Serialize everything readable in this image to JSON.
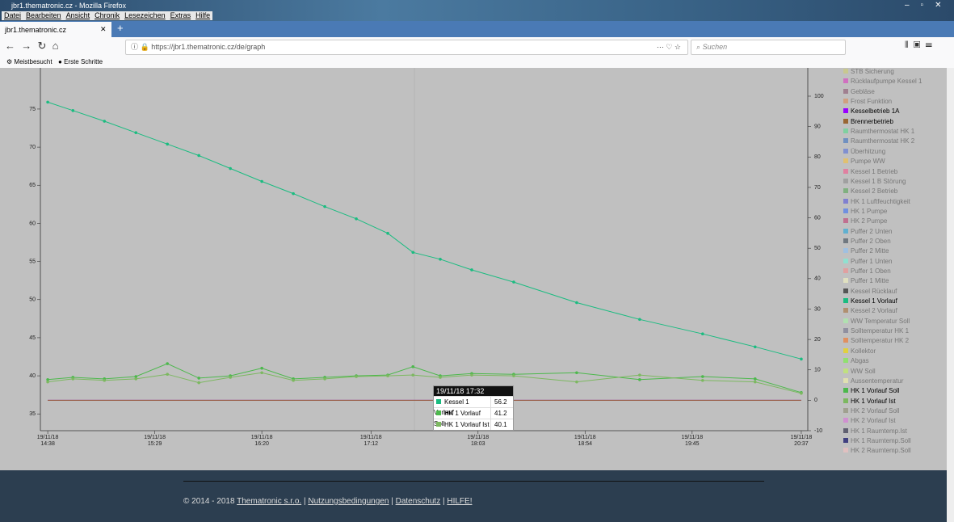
{
  "browser": {
    "window_title": "jbr1.thematronic.cz - Mozilla Firefox",
    "menu": [
      "Datei",
      "Bearbeiten",
      "Ansicht",
      "Chronik",
      "Lesezeichen",
      "Extras",
      "Hilfe"
    ],
    "tab_title": "jbr1.thematronic.cz",
    "url": "https://jbr1.thematronic.cz/de/graph",
    "search_placeholder": "Suchen",
    "bookmarks": [
      "Meistbesucht",
      "Erste Schritte"
    ]
  },
  "chart_data": {
    "type": "line",
    "x": [
      878,
      890,
      905,
      920,
      935,
      950,
      965,
      980,
      995,
      1010,
      1025,
      1040,
      1052,
      1065,
      1080,
      1100,
      1130,
      1160,
      1190,
      1215,
      1237
    ],
    "xlim": [
      874.5,
      1240.1
    ],
    "xticks": [
      {
        "value": 878,
        "label": "19/11/18 14:38"
      },
      {
        "value": 929,
        "label": "19/11/18 15:29"
      },
      {
        "value": 980,
        "label": "19/11/18 16:20"
      },
      {
        "value": 1032,
        "label": "19/11/18 17:12"
      },
      {
        "value": 1083,
        "label": "19/11/18 18:03"
      },
      {
        "value": 1134,
        "label": "19/11/18 18:54"
      },
      {
        "value": 1185,
        "label": "19/11/18 19:45"
      },
      {
        "value": 1237,
        "label": "19/11/18 20:37"
      }
    ],
    "ylim": [
      32.8,
      80.4
    ],
    "yticks": [
      35,
      40,
      45,
      50,
      55,
      60,
      65,
      70,
      75
    ],
    "y2lim": [
      -10,
      109.3
    ],
    "y2ticks": [
      -10,
      0,
      10,
      20,
      30,
      40,
      50,
      60,
      70,
      80,
      90,
      100
    ],
    "series": [
      {
        "name": "STB Sicherung",
        "color": "#c8c890"
      },
      {
        "name": "Rücklaufpumpe Kessel 1",
        "color": "#d070c0"
      },
      {
        "name": "Gebläse",
        "color": "#a08090"
      },
      {
        "name": "Frost Funktion",
        "color": "#d0a080"
      },
      {
        "name": "Kesselbetrieb 1A",
        "color": "#9900ff",
        "axis": "y2",
        "values": [
          0,
          0,
          0,
          0,
          0,
          0,
          0,
          0,
          0,
          0,
          0,
          0,
          0,
          0,
          0,
          0,
          0,
          0,
          0,
          0,
          0
        ]
      },
      {
        "name": "Brennerbetrieb",
        "color": "#996633",
        "axis": "y2",
        "values": [
          0,
          0,
          0,
          0,
          0,
          0,
          0,
          0,
          0,
          0,
          0,
          0,
          0,
          0,
          0,
          0,
          0,
          0,
          0,
          0,
          0
        ]
      },
      {
        "name": "Raumthermostat HK 1",
        "color": "#80d0a0"
      },
      {
        "name": "Raumthermostat HK 2",
        "color": "#7090c0"
      },
      {
        "name": "Überhitzung",
        "color": "#8090d0"
      },
      {
        "name": "Pumpe WW",
        "color": "#e0c070"
      },
      {
        "name": "Kessel 1 Betrieb",
        "color": "#e080a0"
      },
      {
        "name": "Kessel 1 B Störung",
        "color": "#a0a0a0"
      },
      {
        "name": "Kessel 2 Betrieb",
        "color": "#80b080"
      },
      {
        "name": "HK 1 Luftfeuchtigkeit",
        "color": "#8080d0"
      },
      {
        "name": "HK 1 Pumpe",
        "color": "#7090e0"
      },
      {
        "name": "HK 2 Pumpe",
        "color": "#c07090"
      },
      {
        "name": "Puffer 2 Unten",
        "color": "#60b0d0"
      },
      {
        "name": "Puffer 2 Oben",
        "color": "#707880"
      },
      {
        "name": "Puffer 2 Mitte",
        "color": "#a0c0e0"
      },
      {
        "name": "Puffer 1 Unten",
        "color": "#90e0d0"
      },
      {
        "name": "Puffer 1 Oben",
        "color": "#e0a0a0"
      },
      {
        "name": "Puffer 1 Mitte",
        "color": "#e0e0c0"
      },
      {
        "name": "Kessel Rücklauf",
        "color": "#555555"
      },
      {
        "name": "Kessel 1 Vorlauf",
        "color": "#1abc80",
        "values": [
          75.9,
          74.8,
          73.4,
          71.9,
          70.4,
          68.9,
          67.2,
          65.5,
          63.9,
          62.2,
          60.6,
          58.7,
          56.2,
          55.3,
          53.9,
          52.3,
          49.6,
          47.4,
          45.5,
          43.8,
          42.2
        ]
      },
      {
        "name": "Kessel 2 Vorlauf",
        "color": "#b09070"
      },
      {
        "name": "WW Temperatur Soll",
        "color": "#b0e0b0"
      },
      {
        "name": "Solltemperatur HK 1",
        "color": "#9090a0"
      },
      {
        "name": "Solltemperatur HK 2",
        "color": "#e09060"
      },
      {
        "name": "Kollektor",
        "color": "#e0d040"
      },
      {
        "name": "Abgas",
        "color": "#90e070"
      },
      {
        "name": "WW Soll",
        "color": "#c0e080"
      },
      {
        "name": "Aussentemperatur",
        "color": "#e0e0b0"
      },
      {
        "name": "HK 1 Vorlauf Soll",
        "color": "#4cb84c",
        "values": [
          39.5,
          39.8,
          39.6,
          39.9,
          41.6,
          39.7,
          40.0,
          41.0,
          39.6,
          39.8,
          40.0,
          40.1,
          41.2,
          40.0,
          40.3,
          40.2,
          40.4,
          39.5,
          39.9,
          39.6,
          37.8
        ]
      },
      {
        "name": "HK 1 Vorlauf Ist",
        "color": "#7cb860",
        "values": [
          39.2,
          39.6,
          39.4,
          39.6,
          40.2,
          39.1,
          39.8,
          40.4,
          39.4,
          39.6,
          39.9,
          40.0,
          40.1,
          39.8,
          40.1,
          40.0,
          39.2,
          40.1,
          39.4,
          39.2,
          37.7
        ]
      },
      {
        "name": "HK 2 Vorlauf Soll",
        "color": "#a0a090"
      },
      {
        "name": "HK 2 Vorlauf Ist",
        "color": "#d090d0"
      },
      {
        "name": "HK 1 Raumtemp.Ist",
        "color": "#606070"
      },
      {
        "name": "HK 1 Raumtemp.Soll",
        "color": "#404080"
      },
      {
        "name": "HK 2 Raumtemp.Soll",
        "color": "#e0c0c0"
      }
    ],
    "tooltip": {
      "title": "19/11/18 17:32",
      "rows": [
        {
          "name": "Kessel 1 Vorlauf",
          "color": "#1abc80",
          "value": 56.2
        },
        {
          "name": "HK 1 Vorlauf Soll",
          "color": "#4cb84c",
          "value": 41.2
        },
        {
          "name": "HK 1 Vorlauf Ist",
          "color": "#7cb860",
          "value": 40.1
        }
      ]
    }
  },
  "footer": {
    "copyright": "© 2014 - 2018",
    "separator": "|",
    "links": [
      "Thematronic s.r.o.",
      "Nutzungsbedingungen",
      "Datenschutz",
      "HILFE!"
    ]
  }
}
